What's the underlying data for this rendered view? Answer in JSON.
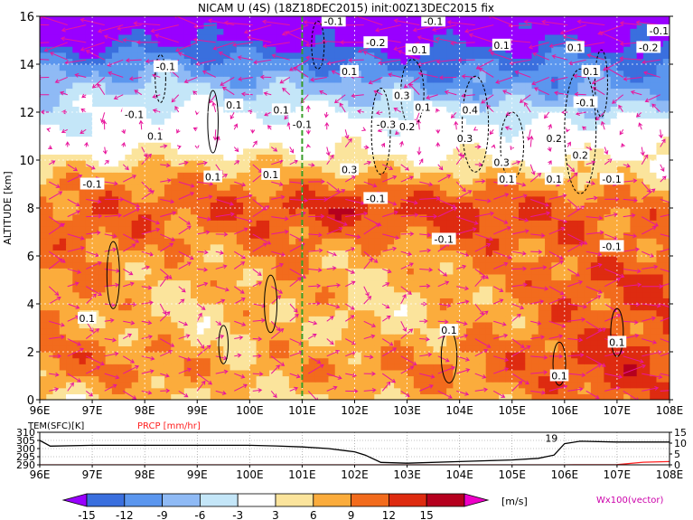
{
  "title": "NICAM U (4S) (18Z18DEC2015) init:00Z13DEC2015 fix",
  "chart_data": [
    {
      "type": "heatmap",
      "name": "zonal-wind-cross-section",
      "ylabel": "ALTITUDE [km]",
      "ylim": [
        0,
        16
      ],
      "yticks": [
        0,
        2,
        4,
        6,
        8,
        10,
        12,
        14,
        16
      ],
      "xlim": [
        96,
        108
      ],
      "xticks": [
        "96E",
        "97E",
        "98E",
        "99E",
        "100E",
        "101E",
        "102E",
        "103E",
        "104E",
        "105E",
        "106E",
        "107E",
        "108E"
      ],
      "grid": true,
      "marker_line_lon": 101.0,
      "altitudes_km": [
        0,
        1,
        2,
        3,
        4,
        5,
        6,
        7,
        8,
        9,
        10,
        11,
        12,
        13,
        14,
        15,
        16
      ],
      "lons": [
        96,
        97,
        98,
        99,
        100,
        101,
        102,
        103,
        104,
        105,
        106,
        107,
        108
      ],
      "u_ms": [
        [
          4,
          5,
          6,
          6,
          5,
          5,
          6,
          7,
          7,
          8,
          9,
          10,
          11
        ],
        [
          8,
          9,
          9,
          8,
          7,
          8,
          9,
          9,
          10,
          10,
          12,
          13,
          12
        ],
        [
          10,
          10,
          9,
          7,
          7,
          8,
          8,
          8,
          9,
          10,
          12,
          13,
          12
        ],
        [
          8,
          7,
          6,
          5,
          6,
          6,
          5,
          6,
          7,
          8,
          10,
          11,
          11
        ],
        [
          9,
          8,
          6,
          5,
          7,
          8,
          5,
          5,
          7,
          8,
          11,
          11,
          12
        ],
        [
          9,
          9,
          7,
          6,
          8,
          8,
          6,
          6,
          8,
          9,
          11,
          12,
          12
        ],
        [
          9,
          9,
          8,
          7,
          8,
          9,
          7,
          7,
          9,
          9,
          10,
          10,
          11
        ],
        [
          10,
          11,
          10,
          9,
          10,
          11,
          10,
          10,
          12,
          12,
          11,
          10,
          10
        ],
        [
          10,
          11,
          11,
          11,
          12,
          13,
          14,
          13,
          13,
          12,
          11,
          10,
          9
        ],
        [
          8,
          9,
          9,
          9,
          9,
          9,
          10,
          8,
          9,
          8,
          8,
          7,
          6
        ],
        [
          3,
          4,
          5,
          5,
          5,
          4,
          4,
          3,
          4,
          3,
          3,
          4,
          4
        ],
        [
          -2,
          -1,
          0,
          0,
          0,
          1,
          1,
          -1,
          0,
          -1,
          0,
          0,
          0
        ],
        [
          -4,
          -3,
          -2,
          -2,
          -3,
          -2,
          -3,
          -4,
          -3,
          -5,
          -4,
          -5,
          -5
        ],
        [
          -7,
          -6,
          -5,
          -6,
          -7,
          -7,
          -7,
          -8,
          -9,
          -10,
          -9,
          -10,
          -10
        ],
        [
          -12,
          -11,
          -10,
          -10,
          -11,
          -11,
          -12,
          -13,
          -13,
          -12,
          -11,
          -12,
          -12
        ],
        [
          -16,
          -16,
          -15,
          -15,
          -16,
          -16,
          -17,
          -17,
          -16,
          -16,
          -15,
          -16,
          -16
        ],
        [
          -19,
          -19,
          -18,
          -18,
          -19,
          -19,
          -19,
          -19,
          -18,
          -18,
          -18,
          -18,
          -18
        ]
      ],
      "contour_labels": [
        "-0.1",
        "-0.2",
        "0.1",
        "0.2",
        "0.3",
        "0.4",
        "-0.3",
        "-0.1",
        "0.1"
      ],
      "contour_label_positions_data": [
        {
          "text": "-0.1",
          "lon": 101.6,
          "alt": 15.8
        },
        {
          "text": "-0.2",
          "lon": 102.4,
          "alt": 14.9
        },
        {
          "text": "-0.1",
          "lon": 103.5,
          "alt": 15.8
        },
        {
          "text": "-0.1",
          "lon": 107.8,
          "alt": 15.4
        },
        {
          "text": "-0.2",
          "lon": 107.6,
          "alt": 14.7
        },
        {
          "text": "-0.1",
          "lon": 98.4,
          "alt": 13.9
        },
        {
          "text": "0.1",
          "lon": 101.9,
          "alt": 13.7
        },
        {
          "text": "-0.1",
          "lon": 103.2,
          "alt": 14.6
        },
        {
          "text": "0.1",
          "lon": 104.8,
          "alt": 14.8
        },
        {
          "text": "0.1",
          "lon": 106.2,
          "alt": 14.7
        },
        {
          "text": "0.1",
          "lon": 106.5,
          "alt": 13.7
        },
        {
          "text": "0.1",
          "lon": 99.7,
          "alt": 12.3
        },
        {
          "text": "-0.1",
          "lon": 97.8,
          "alt": 11.9
        },
        {
          "text": "0.1",
          "lon": 98.2,
          "alt": 11.0
        },
        {
          "text": "0.3",
          "lon": 102.9,
          "alt": 12.7
        },
        {
          "text": "0.1",
          "lon": 103.3,
          "alt": 12.2
        },
        {
          "text": "0.4",
          "lon": 104.2,
          "alt": 12.1
        },
        {
          "text": "-0.1",
          "lon": 106.4,
          "alt": 12.4
        },
        {
          "text": "0.1",
          "lon": 100.6,
          "alt": 12.1
        },
        {
          "text": "-0.1",
          "lon": 101.0,
          "alt": 11.5
        },
        {
          "text": "-0.3",
          "lon": 102.6,
          "alt": 11.5
        },
        {
          "text": "0.2",
          "lon": 103.0,
          "alt": 11.4
        },
        {
          "text": "0.3",
          "lon": 104.1,
          "alt": 10.9
        },
        {
          "text": "0.2",
          "lon": 105.8,
          "alt": 10.9
        },
        {
          "text": "0.2",
          "lon": 106.3,
          "alt": 10.2
        },
        {
          "text": "0.3",
          "lon": 104.8,
          "alt": 9.9
        },
        {
          "text": "0.3",
          "lon": 101.9,
          "alt": 9.6
        },
        {
          "text": "0.1",
          "lon": 99.3,
          "alt": 9.3
        },
        {
          "text": "0.1",
          "lon": 100.4,
          "alt": 9.4
        },
        {
          "text": "0.1",
          "lon": 104.9,
          "alt": 9.2
        },
        {
          "text": "0.1",
          "lon": 105.8,
          "alt": 9.2
        },
        {
          "text": "-0.1",
          "lon": 106.9,
          "alt": 9.2
        },
        {
          "text": "-0.1",
          "lon": 97.0,
          "alt": 9.0
        },
        {
          "text": "-0.1",
          "lon": 102.4,
          "alt": 8.4
        },
        {
          "text": "-0.1",
          "lon": 103.7,
          "alt": 6.7
        },
        {
          "text": "-0.1",
          "lon": 106.9,
          "alt": 6.4
        },
        {
          "text": "0.1",
          "lon": 96.9,
          "alt": 3.4
        },
        {
          "text": "0.1",
          "lon": 103.8,
          "alt": 2.9
        },
        {
          "text": "0.1",
          "lon": 107.0,
          "alt": 2.4
        },
        {
          "text": "0.1",
          "lon": 105.9,
          "alt": 1.0
        }
      ]
    },
    {
      "type": "line",
      "name": "surface-panel",
      "xlim": [
        96,
        108
      ],
      "xticks": [
        "96E",
        "97E",
        "98E",
        "99E",
        "100E",
        "101E",
        "102E",
        "103E",
        "104E",
        "105E",
        "106E",
        "107E",
        "108E"
      ],
      "left_axis_label": "TEM(SFC)[K]",
      "left_axis_ticks": [
        "290",
        "295",
        "300",
        "305",
        "310"
      ],
      "left_ylim": [
        290,
        310
      ],
      "right_axis_label": "PRCP [mm/hr]",
      "right_axis_ticks": [
        "0",
        "5",
        "10",
        "15"
      ],
      "right_ylim": [
        0,
        15
      ],
      "inline_label": "19",
      "series": [
        {
          "name": "TEM(SFC)[K]",
          "x": [
            96.0,
            96.2,
            97.0,
            98.0,
            99.0,
            100.0,
            100.5,
            101.0,
            101.5,
            102.0,
            102.2,
            102.5,
            103.0,
            104.0,
            105.0,
            105.5,
            105.8,
            106.0,
            106.3,
            107.0,
            108.0
          ],
          "values": [
            305.0,
            301.5,
            302.0,
            302.0,
            302.0,
            302.0,
            301.6,
            301.0,
            300.0,
            298.0,
            296.0,
            291.5,
            291.0,
            292.0,
            293.0,
            294.0,
            296.0,
            303.0,
            304.5,
            304.0,
            304.0
          ]
        },
        {
          "name": "PRCP [mm/hr]",
          "x": [
            96.0,
            100.0,
            104.0,
            106.0,
            107.0,
            107.5,
            108.0
          ],
          "values": [
            0.0,
            0.0,
            0.0,
            0.0,
            0.1,
            1.2,
            1.5
          ]
        }
      ]
    }
  ],
  "colorbar": {
    "ticks": [
      "-15",
      "-12",
      "-9",
      "-6",
      "-3",
      "3",
      "6",
      "9",
      "12",
      "15"
    ],
    "unit": "[m/s]",
    "vector_label": "Wx100(vector)",
    "colors": [
      "#9900ff",
      "#3a6fde",
      "#5b96ee",
      "#8fbaf5",
      "#c4e6f8",
      "#ffffff",
      "#fbe49c",
      "#fbac3c",
      "#f26b1d",
      "#de2b10",
      "#b5001e",
      "#ee00c8"
    ]
  },
  "colors": {
    "vector": "#e8169c",
    "marker_line": "#3a9d2a",
    "precip_line": "#ff2020",
    "temperature_line": "#000000"
  }
}
